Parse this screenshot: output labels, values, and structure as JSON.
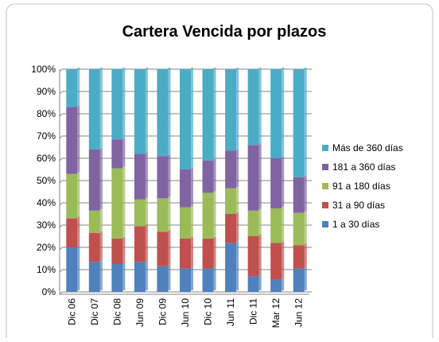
{
  "chart_data": {
    "type": "stacked_bar_100",
    "title": "Cartera Vencida por plazos",
    "categories": [
      "Dic 06",
      "Dic 07",
      "Dic 08",
      "Jun 09",
      "Dic 09",
      "Jun 10",
      "Dic 10",
      "Jun 11",
      "Dic 11",
      "Mar 12",
      "Jun 12"
    ],
    "series": [
      {
        "name": "1 a 30 días",
        "color": "#4f81bd",
        "values": [
          20,
          13.5,
          12.5,
          13.5,
          11.5,
          10.5,
          10.5,
          22,
          7,
          5.5,
          10.5
        ]
      },
      {
        "name": "31 a 90 días",
        "color": "#c0504d",
        "values": [
          13,
          13,
          11.5,
          16,
          15.5,
          13.5,
          13.5,
          13,
          18,
          16.5,
          10.5
        ]
      },
      {
        "name": "91 a 180 días",
        "color": "#9bbb59",
        "values": [
          20,
          10,
          31.5,
          12,
          15,
          14,
          20.5,
          11.5,
          11.5,
          15.5,
          14.5
        ]
      },
      {
        "name": "181 a 360 días",
        "color": "#8064a2",
        "values": [
          30,
          27.5,
          13,
          20.5,
          19,
          17,
          14.5,
          17,
          29.5,
          22.5,
          16
        ]
      },
      {
        "name": "Más de 360 días",
        "color": "#4bacc6",
        "values": [
          17,
          36,
          31.5,
          38,
          39,
          45,
          41,
          36.5,
          34,
          40,
          48.5
        ]
      }
    ],
    "ylim": [
      0,
      100
    ],
    "yticks": [
      {
        "value": 0,
        "label": "0%"
      },
      {
        "value": 10,
        "label": "10%"
      },
      {
        "value": 20,
        "label": "20%"
      },
      {
        "value": 30,
        "label": "30%"
      },
      {
        "value": 40,
        "label": "40%"
      },
      {
        "value": 50,
        "label": "50%"
      },
      {
        "value": 60,
        "label": "60%"
      },
      {
        "value": 70,
        "label": "70%"
      },
      {
        "value": 80,
        "label": "80%"
      },
      {
        "value": 90,
        "label": "90%"
      },
      {
        "value": 100,
        "label": "100%"
      }
    ],
    "grid": true,
    "legend": "right"
  }
}
